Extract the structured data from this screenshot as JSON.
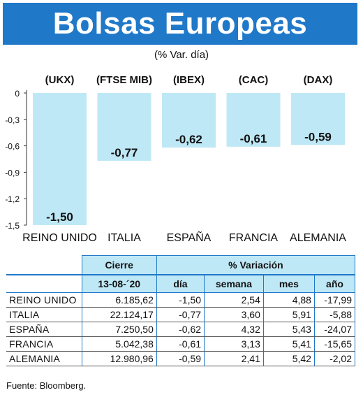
{
  "header": {
    "title": "Bolsas Europeas",
    "subtitle": "(% Var. día)"
  },
  "colors": {
    "banner": "#1f78c8",
    "bar": "#bfe8f6",
    "table_header": "#bfe8f6"
  },
  "chart_data": {
    "type": "bar",
    "index_labels": [
      "(UKX)",
      "(FTSE MIB)",
      "(IBEX)",
      "(CAC)",
      "(DAX)"
    ],
    "categories": [
      "REINO UNIDO",
      "ITALIA",
      "ESPAÑA",
      "FRANCIA",
      "ALEMANIA"
    ],
    "values": [
      -1.5,
      -0.77,
      -0.62,
      -0.61,
      -0.59
    ],
    "value_labels": [
      "-1,50",
      "-0,77",
      "-0,62",
      "-0,61",
      "-0,59"
    ],
    "yticks": [
      0,
      -0.3,
      -0.6,
      -0.9,
      -1.2,
      -1.5
    ],
    "ytick_labels": [
      "0",
      "-0,3",
      "-0,6",
      "-0,9",
      "-1,2",
      "-1,5"
    ],
    "ylim": [
      -1.5,
      0
    ],
    "grid": false,
    "legend": "none"
  },
  "table": {
    "group_headers": {
      "cierre": "Cierre",
      "variacion": "% Variación"
    },
    "columns": [
      "13-08-´20",
      "día",
      "semana",
      "mes",
      "año"
    ],
    "rows": [
      {
        "name": "REINO UNIDO",
        "cierre": "6.185,62",
        "dia": "-1,50",
        "semana": "2,54",
        "mes": "4,88",
        "ano": "-17,99"
      },
      {
        "name": "ITALIA",
        "cierre": "22.124,17",
        "dia": "-0,77",
        "semana": "3,60",
        "mes": "5,91",
        "ano": "-5,88"
      },
      {
        "name": "ESPAÑA",
        "cierre": "7.250,50",
        "dia": "-0,62",
        "semana": "4,32",
        "mes": "5,43",
        "ano": "-24,07"
      },
      {
        "name": "FRANCIA",
        "cierre": "5.042,38",
        "dia": "-0,61",
        "semana": "3,13",
        "mes": "5,41",
        "ano": "-15,65"
      },
      {
        "name": "ALEMANIA",
        "cierre": "12.980,96",
        "dia": "-0,59",
        "semana": "2,41",
        "mes": "5,42",
        "ano": "-2,02"
      }
    ]
  },
  "source": "Fuente: Bloomberg."
}
